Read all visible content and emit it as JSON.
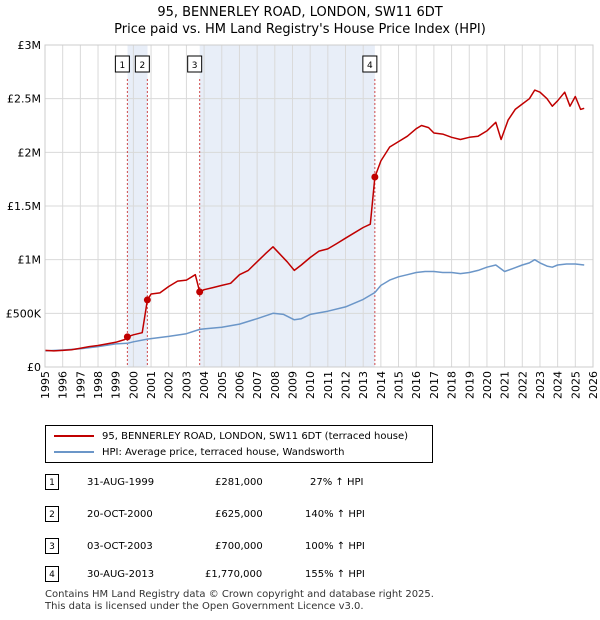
{
  "title": "95, BENNERLEY ROAD, LONDON, SW11 6DT",
  "subtitle": "Price paid vs. HM Land Registry's House Price Index (HPI)",
  "colors": {
    "property": "#c00000",
    "hpi": "#6b96c8",
    "shade": "#e8eef8"
  },
  "chart_data": {
    "type": "line",
    "xlim": [
      1995,
      2026
    ],
    "ylim": [
      0,
      3000000
    ],
    "x_ticks": [
      "1995",
      "1996",
      "1997",
      "1998",
      "1999",
      "2000",
      "2001",
      "2002",
      "2003",
      "2004",
      "2005",
      "2006",
      "2007",
      "2008",
      "2009",
      "2010",
      "2011",
      "2012",
      "2013",
      "2014",
      "2015",
      "2016",
      "2017",
      "2018",
      "2019",
      "2020",
      "2021",
      "2022",
      "2023",
      "2024",
      "2025",
      "2026"
    ],
    "y_ticks": [
      {
        "value": 0,
        "label": "£0"
      },
      {
        "value": 500000,
        "label": "£500K"
      },
      {
        "value": 1000000,
        "label": "£1M"
      },
      {
        "value": 1500000,
        "label": "£1.5M"
      },
      {
        "value": 2000000,
        "label": "£2M"
      },
      {
        "value": 2500000,
        "label": "£2.5M"
      },
      {
        "value": 3000000,
        "label": "£3M"
      }
    ],
    "shaded_ranges": [
      [
        1999.67,
        2000.8
      ],
      [
        2003.75,
        2013.66
      ]
    ],
    "series": [
      {
        "name": "95, BENNERLEY ROAD, LONDON, SW11 6DT (terraced house)",
        "x": [
          1995.0,
          1995.5,
          1996.0,
          1996.5,
          1997.0,
          1997.5,
          1998.0,
          1998.5,
          1999.0,
          1999.5,
          1999.66,
          2000.0,
          2000.5,
          2000.79,
          2001.0,
          2001.5,
          2002.0,
          2002.5,
          2003.0,
          2003.5,
          2003.75,
          2004.0,
          2004.5,
          2005.0,
          2005.5,
          2006.0,
          2006.5,
          2007.0,
          2007.5,
          2007.9,
          2008.3,
          2008.7,
          2009.1,
          2009.5,
          2010.0,
          2010.5,
          2011.0,
          2011.5,
          2012.0,
          2012.5,
          2013.0,
          2013.4,
          2013.66,
          2014.0,
          2014.5,
          2015.0,
          2015.5,
          2016.0,
          2016.3,
          2016.7,
          2017.0,
          2017.5,
          2018.0,
          2018.5,
          2019.0,
          2019.5,
          2020.0,
          2020.5,
          2020.8,
          2021.2,
          2021.6,
          2022.0,
          2022.4,
          2022.7,
          2023.0,
          2023.4,
          2023.7,
          2024.0,
          2024.4,
          2024.7,
          2025.0,
          2025.3,
          2025.5
        ],
        "values": [
          155000,
          150000,
          155000,
          160000,
          175000,
          190000,
          200000,
          215000,
          230000,
          255000,
          281000,
          300000,
          320000,
          625000,
          680000,
          690000,
          750000,
          800000,
          810000,
          860000,
          700000,
          720000,
          740000,
          760000,
          780000,
          860000,
          900000,
          980000,
          1060000,
          1120000,
          1050000,
          980000,
          900000,
          950000,
          1020000,
          1080000,
          1100000,
          1150000,
          1200000,
          1250000,
          1300000,
          1330000,
          1770000,
          1920000,
          2050000,
          2100000,
          2150000,
          2220000,
          2250000,
          2230000,
          2180000,
          2170000,
          2140000,
          2120000,
          2140000,
          2150000,
          2200000,
          2280000,
          2120000,
          2300000,
          2400000,
          2450000,
          2500000,
          2580000,
          2560000,
          2500000,
          2430000,
          2480000,
          2560000,
          2430000,
          2520000,
          2400000,
          2410000
        ]
      },
      {
        "name": "HPI: Average price, terraced house, Wandsworth",
        "x": [
          1995.0,
          1996.0,
          1997.0,
          1998.0,
          1999.0,
          1999.66,
          2000.0,
          2000.79,
          2001.0,
          2002.0,
          2003.0,
          2003.75,
          2004.0,
          2005.0,
          2006.0,
          2007.0,
          2007.9,
          2008.5,
          2009.1,
          2009.5,
          2010.0,
          2011.0,
          2012.0,
          2013.0,
          2013.66,
          2014.0,
          2014.5,
          2015.0,
          2015.5,
          2016.0,
          2016.5,
          2017.0,
          2017.5,
          2018.0,
          2018.5,
          2019.0,
          2019.5,
          2020.0,
          2020.5,
          2021.0,
          2021.5,
          2022.0,
          2022.4,
          2022.7,
          2023.0,
          2023.4,
          2023.7,
          2024.0,
          2024.5,
          2025.0,
          2025.5
        ],
        "values": [
          150000,
          158000,
          170000,
          190000,
          215000,
          221000,
          235000,
          260000,
          265000,
          285000,
          310000,
          350000,
          355000,
          370000,
          400000,
          450000,
          500000,
          490000,
          440000,
          450000,
          490000,
          520000,
          560000,
          630000,
          694000,
          760000,
          810000,
          840000,
          860000,
          880000,
          890000,
          890000,
          880000,
          880000,
          870000,
          880000,
          900000,
          930000,
          950000,
          890000,
          920000,
          950000,
          970000,
          1000000,
          970000,
          940000,
          930000,
          950000,
          960000,
          960000,
          950000
        ]
      }
    ],
    "sales": [
      {
        "n": "1",
        "x": 1999.66,
        "y": 281000
      },
      {
        "n": "2",
        "x": 2000.79,
        "y": 625000
      },
      {
        "n": "3",
        "x": 2003.75,
        "y": 700000
      },
      {
        "n": "4",
        "x": 2013.66,
        "y": 1770000
      }
    ]
  },
  "legend": [
    {
      "label": "95, BENNERLEY ROAD, LONDON, SW11 6DT (terraced house)"
    },
    {
      "label": "HPI: Average price, terraced house, Wandsworth"
    }
  ],
  "transactions": [
    {
      "n": "1",
      "date": "31-AUG-1999",
      "price": "£281,000",
      "hpi": "27% ↑ HPI"
    },
    {
      "n": "2",
      "date": "20-OCT-2000",
      "price": "£625,000",
      "hpi": "140% ↑ HPI"
    },
    {
      "n": "3",
      "date": "03-OCT-2003",
      "price": "£700,000",
      "hpi": "100% ↑ HPI"
    },
    {
      "n": "4",
      "date": "30-AUG-2013",
      "price": "£1,770,000",
      "hpi": "155% ↑ HPI"
    }
  ],
  "footer": {
    "line1": "Contains HM Land Registry data © Crown copyright and database right 2025.",
    "line2": "This data is licensed under the Open Government Licence v3.0."
  }
}
